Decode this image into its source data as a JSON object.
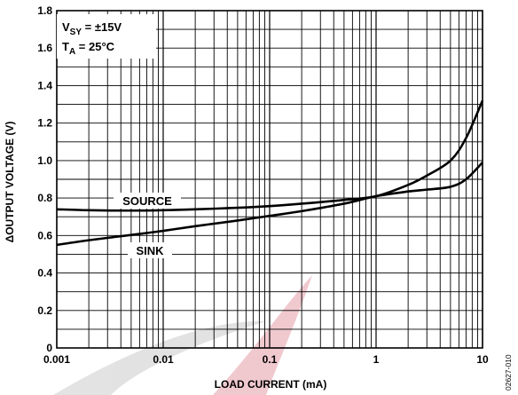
{
  "chart_data": {
    "type": "line",
    "title": "",
    "xlabel": "LOAD CURRENT (mA)",
    "ylabel": "ΔOUTPUT VOLTAGE (V)",
    "x_scale": "log",
    "xlim": [
      0.001,
      10
    ],
    "ylim": [
      0,
      1.8
    ],
    "grid": true,
    "x_ticks": [
      "0.001",
      "0.01",
      "0.1",
      "1",
      "10"
    ],
    "y_ticks": [
      "0",
      "0.2",
      "0.4",
      "0.6",
      "0.8",
      "1.0",
      "1.2",
      "1.4",
      "1.6",
      "1.8"
    ],
    "conditions": {
      "vsy": {
        "main": "V",
        "sub": "SY",
        "rest": " = ±15V"
      },
      "ta": {
        "main": "T",
        "sub": "A",
        "rest": " = 25°C"
      }
    },
    "series": [
      {
        "name": "SOURCE",
        "x": [
          0.001,
          0.002,
          0.005,
          0.01,
          0.02,
          0.05,
          0.1,
          0.2,
          0.5,
          1,
          2,
          3,
          5,
          7,
          10
        ],
        "y": [
          0.74,
          0.735,
          0.733,
          0.735,
          0.74,
          0.748,
          0.757,
          0.77,
          0.79,
          0.81,
          0.87,
          0.92,
          1.0,
          1.12,
          1.32
        ]
      },
      {
        "name": "SINK",
        "x": [
          0.001,
          0.002,
          0.005,
          0.01,
          0.02,
          0.05,
          0.1,
          0.2,
          0.5,
          1,
          2,
          3,
          5,
          7,
          10
        ],
        "y": [
          0.55,
          0.575,
          0.603,
          0.625,
          0.65,
          0.68,
          0.705,
          0.73,
          0.77,
          0.81,
          0.835,
          0.845,
          0.86,
          0.9,
          0.99
        ]
      }
    ]
  },
  "figure_code": "02627-010"
}
